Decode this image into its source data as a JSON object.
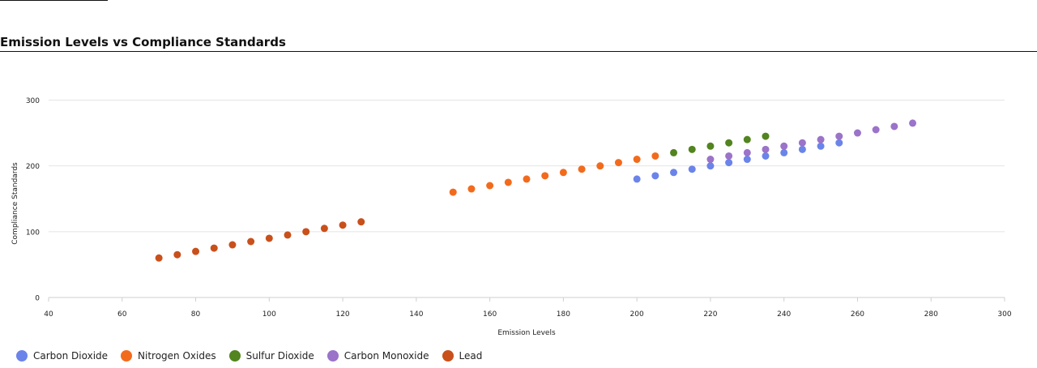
{
  "chart_data": {
    "type": "scatter",
    "title": "Emission Levels vs Compliance Standards",
    "xlabel": "Emission Levels",
    "ylabel": "Compliance Standards",
    "xlim": [
      40,
      300
    ],
    "ylim": [
      0,
      340
    ],
    "x_ticks": [
      40,
      60,
      80,
      100,
      120,
      140,
      160,
      180,
      200,
      220,
      240,
      260,
      280,
      300
    ],
    "y_ticks": [
      0,
      100,
      200,
      300
    ],
    "grid": "horizontal",
    "legend_position": "bottom-left",
    "series": [
      {
        "name": "Carbon Dioxide",
        "color": "#6b84ea",
        "x": [
          200,
          205,
          210,
          215,
          220,
          225,
          230,
          235,
          240,
          245,
          250,
          255
        ],
        "y": [
          180,
          185,
          190,
          195,
          200,
          205,
          210,
          215,
          220,
          225,
          230,
          235
        ]
      },
      {
        "name": "Nitrogen Oxides",
        "color": "#f26b1d",
        "x": [
          150,
          155,
          160,
          165,
          170,
          175,
          180,
          185,
          190,
          195,
          200,
          205
        ],
        "y": [
          160,
          165,
          170,
          175,
          180,
          185,
          190,
          195,
          200,
          205,
          210,
          215
        ]
      },
      {
        "name": "Sulfur Dioxide",
        "color": "#52841f",
        "x": [
          210,
          215,
          220,
          225,
          230,
          235
        ],
        "y": [
          220,
          225,
          230,
          235,
          240,
          245
        ]
      },
      {
        "name": "Carbon Monoxide",
        "color": "#9b73c9",
        "x": [
          220,
          225,
          230,
          235,
          240,
          245,
          250,
          255,
          260,
          265,
          270,
          275
        ],
        "y": [
          210,
          215,
          220,
          225,
          230,
          235,
          240,
          245,
          250,
          255,
          260,
          265
        ]
      },
      {
        "name": "Lead",
        "color": "#c9501b",
        "x": [
          70,
          75,
          80,
          85,
          90,
          95,
          100,
          105,
          110,
          115,
          120,
          125
        ],
        "y": [
          60,
          65,
          70,
          75,
          80,
          85,
          90,
          95,
          100,
          105,
          110,
          115
        ]
      }
    ]
  }
}
